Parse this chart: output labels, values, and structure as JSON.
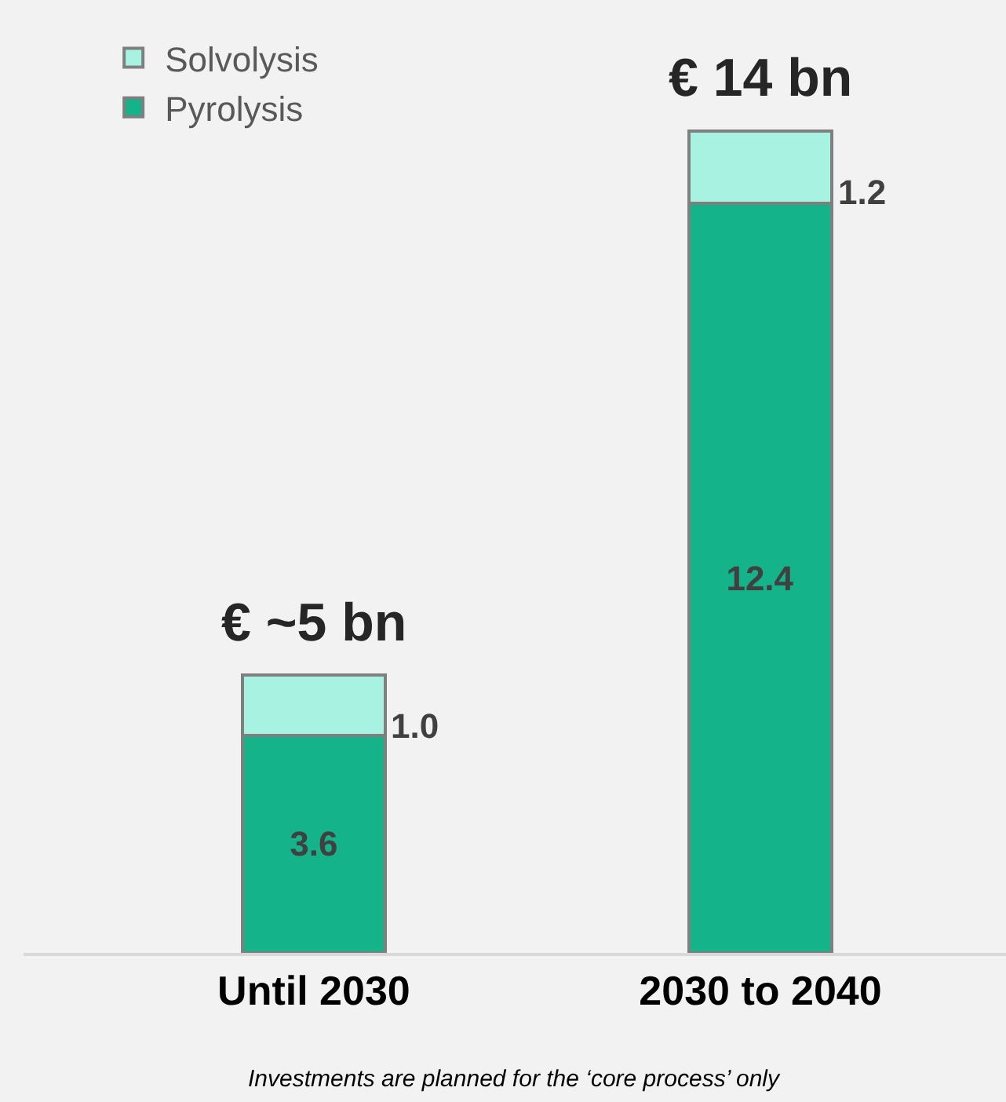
{
  "chart_data": {
    "type": "bar",
    "stacked": true,
    "categories": [
      "Until 2030",
      "2030 to 2040"
    ],
    "series": [
      {
        "name": "Pyrolysis",
        "color": "#14b38a",
        "values": [
          3.6,
          12.4
        ],
        "value_labels": [
          "3.6",
          "12.4"
        ]
      },
      {
        "name": "Solvolysis",
        "color": "#a8f2e2",
        "values": [
          1.0,
          1.2
        ],
        "value_labels": [
          "1.0",
          "1.2"
        ]
      }
    ],
    "totals": [
      "€ ~5 bn",
      "€ 14 bn"
    ],
    "tick_labels": "x",
    "grid": false,
    "legend": "top left",
    "annotations": [
      "Investments are planned for the ‘core process’ only"
    ]
  }
}
